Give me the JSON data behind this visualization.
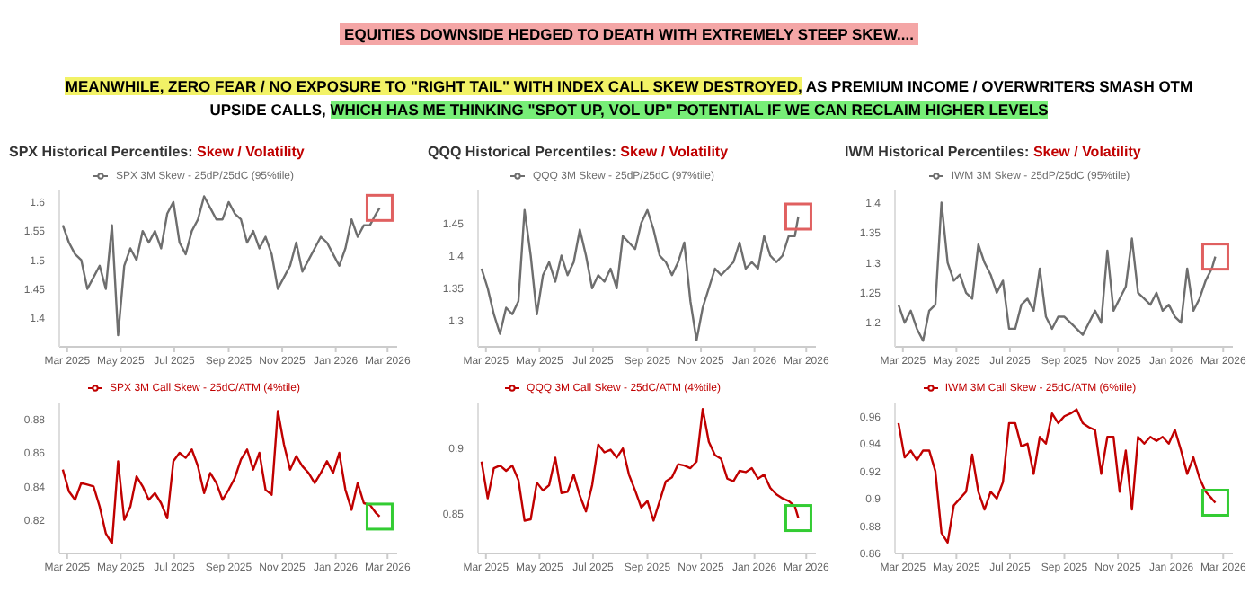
{
  "chart_data": [
    {
      "type": "line",
      "title": "SPX Historical Percentiles:",
      "subtitle": "Skew / Volatility",
      "annotations": [
        "EQUITIES DOWNSIDE HEDGED TO DEATH WITH EXTREMELY STEEP SKEW....",
        "MEANWHILE, ZERO FEAR / NO EXPOSURE TO \"RIGHT TAIL\" WITH INDEX CALL SKEW DESTROYED,",
        " AS PREMIUM INCOME / OVERWRITERS SMASH OTM UPSIDE CALLS, ",
        "WHICH HAS ME THINKING \"SPOT UP, VOL UP\" POTENTIAL IF WE CAN RECLAIM HIGHER LEVELS"
      ],
      "legend": "top",
      "marker": "none",
      "line_style": "solid",
      "x": [
        "2025-02-24",
        "2025-03-03",
        "2025-03-10",
        "2025-03-17",
        "2025-03-24",
        "2025-03-31",
        "2025-04-07",
        "2025-04-14",
        "2025-04-21",
        "2025-04-28",
        "2025-05-05",
        "2025-05-12",
        "2025-05-19",
        "2025-05-26",
        "2025-06-02",
        "2025-06-09",
        "2025-06-16",
        "2025-06-23",
        "2025-06-30",
        "2025-07-07",
        "2025-07-14",
        "2025-07-21",
        "2025-07-28",
        "2025-08-04",
        "2025-08-11",
        "2025-08-18",
        "2025-08-25",
        "2025-09-01",
        "2025-09-08",
        "2025-09-15",
        "2025-09-22",
        "2025-09-29",
        "2025-10-06",
        "2025-10-13",
        "2025-10-20",
        "2025-10-27",
        "2025-11-03",
        "2025-11-10",
        "2025-11-17",
        "2025-11-24",
        "2025-12-01",
        "2025-12-08",
        "2025-12-15",
        "2025-12-22",
        "2025-12-29",
        "2026-01-05",
        "2026-01-12",
        "2026-01-19",
        "2026-01-26",
        "2026-02-02",
        "2026-02-09",
        "2026-02-16",
        "2026-02-20"
      ],
      "xlim": [
        "2025-02-20",
        "2026-03-12"
      ],
      "xticks": [
        {
          "value": "2025-03-01",
          "label": "Mar 2025"
        },
        {
          "value": "2025-05-01",
          "label": "May 2025"
        },
        {
          "value": "2025-07-01",
          "label": "Jul 2025"
        },
        {
          "value": "2025-09-01",
          "label": "Sep 2025"
        },
        {
          "value": "2025-11-01",
          "label": "Nov 2025"
        },
        {
          "value": "2026-01-01",
          "label": "Jan 2026"
        },
        {
          "value": "2026-03-01",
          "label": "Mar 2026"
        }
      ],
      "ylim": [
        1.35,
        1.62
      ],
      "yticks": [
        1.4,
        1.45,
        1.5,
        1.55,
        1.6
      ],
      "series": [
        {
          "name": "SPX 3M Skew - 25dP/25dC (95%tile)",
          "color": "#6e6e6e",
          "values": [
            1.56,
            1.53,
            1.51,
            1.5,
            1.45,
            1.47,
            1.49,
            1.45,
            1.56,
            1.37,
            1.49,
            1.52,
            1.5,
            1.55,
            1.53,
            1.55,
            1.52,
            1.58,
            1.6,
            1.53,
            1.51,
            1.55,
            1.57,
            1.61,
            1.59,
            1.57,
            1.57,
            1.6,
            1.58,
            1.57,
            1.53,
            1.55,
            1.52,
            1.54,
            1.51,
            1.45,
            1.47,
            1.49,
            1.53,
            1.48,
            1.5,
            1.52,
            1.54,
            1.53,
            1.51,
            1.49,
            1.52,
            1.57,
            1.54,
            1.56,
            1.56,
            1.58,
            1.59
          ]
        }
      ]
    },
    {
      "type": "line",
      "title": "QQQ Historical Percentiles:",
      "subtitle": "Skew / Volatility",
      "legend": "top",
      "marker": "none",
      "line_style": "solid",
      "x": [
        "2025-02-24",
        "2025-03-03",
        "2025-03-10",
        "2025-03-17",
        "2025-03-24",
        "2025-03-31",
        "2025-04-07",
        "2025-04-14",
        "2025-04-21",
        "2025-04-28",
        "2025-05-05",
        "2025-05-12",
        "2025-05-19",
        "2025-05-26",
        "2025-06-02",
        "2025-06-09",
        "2025-06-16",
        "2025-06-23",
        "2025-06-30",
        "2025-07-07",
        "2025-07-14",
        "2025-07-21",
        "2025-07-28",
        "2025-08-04",
        "2025-08-11",
        "2025-08-18",
        "2025-08-25",
        "2025-09-01",
        "2025-09-08",
        "2025-09-15",
        "2025-09-22",
        "2025-09-29",
        "2025-10-06",
        "2025-10-13",
        "2025-10-20",
        "2025-10-27",
        "2025-11-03",
        "2025-11-10",
        "2025-11-17",
        "2025-11-24",
        "2025-12-01",
        "2025-12-08",
        "2025-12-15",
        "2025-12-22",
        "2025-12-29",
        "2026-01-05",
        "2026-01-12",
        "2026-01-19",
        "2026-01-26",
        "2026-02-02",
        "2026-02-09",
        "2026-02-16",
        "2026-02-20"
      ],
      "xlim": [
        "2025-02-20",
        "2026-03-12"
      ],
      "xticks": [
        {
          "value": "2025-03-01",
          "label": "Mar 2025"
        },
        {
          "value": "2025-05-01",
          "label": "May 2025"
        },
        {
          "value": "2025-07-01",
          "label": "Jul 2025"
        },
        {
          "value": "2025-09-01",
          "label": "Sep 2025"
        },
        {
          "value": "2025-11-01",
          "label": "Nov 2025"
        },
        {
          "value": "2026-01-01",
          "label": "Jan 2026"
        },
        {
          "value": "2026-03-01",
          "label": "Mar 2026"
        }
      ],
      "ylim": [
        1.26,
        1.5
      ],
      "yticks": [
        1.3,
        1.35,
        1.4,
        1.45
      ],
      "series": [
        {
          "name": "QQQ 3M Skew - 25dP/25dC (97%tile)",
          "color": "#6e6e6e",
          "values": [
            1.38,
            1.35,
            1.31,
            1.28,
            1.32,
            1.31,
            1.33,
            1.47,
            1.4,
            1.31,
            1.37,
            1.39,
            1.36,
            1.4,
            1.37,
            1.39,
            1.44,
            1.4,
            1.35,
            1.37,
            1.36,
            1.38,
            1.35,
            1.43,
            1.42,
            1.41,
            1.45,
            1.47,
            1.44,
            1.4,
            1.39,
            1.37,
            1.39,
            1.42,
            1.33,
            1.27,
            1.32,
            1.35,
            1.38,
            1.37,
            1.38,
            1.39,
            1.42,
            1.38,
            1.39,
            1.38,
            1.43,
            1.4,
            1.39,
            1.4,
            1.43,
            1.43,
            1.46
          ]
        }
      ]
    },
    {
      "type": "line",
      "title": "IWM Historical Percentiles:",
      "subtitle": "Skew / Volatility",
      "legend": "top",
      "marker": "none",
      "line_style": "solid",
      "x": [
        "2025-02-24",
        "2025-03-03",
        "2025-03-10",
        "2025-03-17",
        "2025-03-24",
        "2025-03-31",
        "2025-04-07",
        "2025-04-14",
        "2025-04-21",
        "2025-04-28",
        "2025-05-05",
        "2025-05-12",
        "2025-05-19",
        "2025-05-26",
        "2025-06-02",
        "2025-06-09",
        "2025-06-16",
        "2025-06-23",
        "2025-06-30",
        "2025-07-07",
        "2025-07-14",
        "2025-07-21",
        "2025-07-28",
        "2025-08-04",
        "2025-08-11",
        "2025-08-18",
        "2025-08-25",
        "2025-09-01",
        "2025-09-08",
        "2025-09-15",
        "2025-09-22",
        "2025-09-29",
        "2025-10-06",
        "2025-10-13",
        "2025-10-20",
        "2025-10-27",
        "2025-11-03",
        "2025-11-10",
        "2025-11-17",
        "2025-11-24",
        "2025-12-01",
        "2025-12-08",
        "2025-12-15",
        "2025-12-22",
        "2025-12-29",
        "2026-01-05",
        "2026-01-12",
        "2026-01-19",
        "2026-01-26",
        "2026-02-02",
        "2026-02-09",
        "2026-02-16",
        "2026-02-20"
      ],
      "xlim": [
        "2025-02-20",
        "2026-03-12"
      ],
      "xticks": [
        {
          "value": "2025-03-01",
          "label": "Mar 2025"
        },
        {
          "value": "2025-05-01",
          "label": "May 2025"
        },
        {
          "value": "2025-07-01",
          "label": "Jul 2025"
        },
        {
          "value": "2025-09-01",
          "label": "Sep 2025"
        },
        {
          "value": "2025-11-01",
          "label": "Nov 2025"
        },
        {
          "value": "2026-01-01",
          "label": "Jan 2026"
        },
        {
          "value": "2026-03-01",
          "label": "Mar 2026"
        }
      ],
      "ylim": [
        1.16,
        1.42
      ],
      "yticks": [
        1.2,
        1.25,
        1.3,
        1.35,
        1.4
      ],
      "series": [
        {
          "name": "IWM 3M Skew - 25dP/25dC (95%tile)",
          "color": "#6e6e6e",
          "values": [
            1.23,
            1.2,
            1.22,
            1.19,
            1.17,
            1.22,
            1.23,
            1.4,
            1.3,
            1.27,
            1.28,
            1.25,
            1.24,
            1.33,
            1.3,
            1.28,
            1.25,
            1.27,
            1.19,
            1.19,
            1.23,
            1.24,
            1.22,
            1.29,
            1.21,
            1.19,
            1.21,
            1.21,
            1.2,
            1.19,
            1.18,
            1.2,
            1.22,
            1.2,
            1.32,
            1.22,
            1.24,
            1.26,
            1.34,
            1.25,
            1.24,
            1.23,
            1.25,
            1.22,
            1.23,
            1.21,
            1.2,
            1.29,
            1.22,
            1.24,
            1.27,
            1.29,
            1.31
          ]
        }
      ]
    },
    {
      "type": "line",
      "legend": "top",
      "marker": "none",
      "line_style": "solid",
      "x": [
        "2025-02-24",
        "2025-03-03",
        "2025-03-10",
        "2025-03-17",
        "2025-03-24",
        "2025-03-31",
        "2025-04-07",
        "2025-04-14",
        "2025-04-21",
        "2025-04-28",
        "2025-05-05",
        "2025-05-12",
        "2025-05-19",
        "2025-05-26",
        "2025-06-02",
        "2025-06-09",
        "2025-06-16",
        "2025-06-23",
        "2025-06-30",
        "2025-07-07",
        "2025-07-14",
        "2025-07-21",
        "2025-07-28",
        "2025-08-04",
        "2025-08-11",
        "2025-08-18",
        "2025-08-25",
        "2025-09-01",
        "2025-09-08",
        "2025-09-15",
        "2025-09-22",
        "2025-09-29",
        "2025-10-06",
        "2025-10-13",
        "2025-10-20",
        "2025-10-27",
        "2025-11-03",
        "2025-11-10",
        "2025-11-17",
        "2025-11-24",
        "2025-12-01",
        "2025-12-08",
        "2025-12-15",
        "2025-12-22",
        "2025-12-29",
        "2026-01-05",
        "2026-01-12",
        "2026-01-19",
        "2026-01-26",
        "2026-02-02",
        "2026-02-09",
        "2026-02-16",
        "2026-02-20"
      ],
      "xlim": [
        "2025-02-20",
        "2026-03-12"
      ],
      "xticks": [
        {
          "value": "2025-03-01",
          "label": "Mar 2025"
        },
        {
          "value": "2025-05-01",
          "label": "May 2025"
        },
        {
          "value": "2025-07-01",
          "label": "Jul 2025"
        },
        {
          "value": "2025-09-01",
          "label": "Sep 2025"
        },
        {
          "value": "2025-11-01",
          "label": "Nov 2025"
        },
        {
          "value": "2026-01-01",
          "label": "Jan 2026"
        },
        {
          "value": "2026-03-01",
          "label": "Mar 2026"
        }
      ],
      "ylim": [
        0.8,
        0.89
      ],
      "yticks": [
        0.82,
        0.84,
        0.86,
        0.88
      ],
      "series": [
        {
          "name": "SPX 3M Call Skew - 25dC/ATM (4%tile)",
          "color": "#c00000",
          "values": [
            0.85,
            0.837,
            0.832,
            0.842,
            0.841,
            0.84,
            0.828,
            0.812,
            0.806,
            0.855,
            0.82,
            0.828,
            0.846,
            0.84,
            0.832,
            0.836,
            0.83,
            0.821,
            0.855,
            0.86,
            0.857,
            0.862,
            0.852,
            0.836,
            0.848,
            0.842,
            0.832,
            0.838,
            0.845,
            0.856,
            0.862,
            0.85,
            0.86,
            0.838,
            0.835,
            0.885,
            0.865,
            0.85,
            0.858,
            0.852,
            0.848,
            0.842,
            0.848,
            0.855,
            0.848,
            0.86,
            0.838,
            0.826,
            0.842,
            0.83,
            0.829,
            0.824,
            0.822
          ]
        }
      ]
    },
    {
      "type": "line",
      "legend": "top",
      "marker": "none",
      "line_style": "solid",
      "x": [
        "2025-02-24",
        "2025-03-03",
        "2025-03-10",
        "2025-03-17",
        "2025-03-24",
        "2025-03-31",
        "2025-04-07",
        "2025-04-14",
        "2025-04-21",
        "2025-04-28",
        "2025-05-05",
        "2025-05-12",
        "2025-05-19",
        "2025-05-26",
        "2025-06-02",
        "2025-06-09",
        "2025-06-16",
        "2025-06-23",
        "2025-06-30",
        "2025-07-07",
        "2025-07-14",
        "2025-07-21",
        "2025-07-28",
        "2025-08-04",
        "2025-08-11",
        "2025-08-18",
        "2025-08-25",
        "2025-09-01",
        "2025-09-08",
        "2025-09-15",
        "2025-09-22",
        "2025-09-29",
        "2025-10-06",
        "2025-10-13",
        "2025-10-20",
        "2025-10-27",
        "2025-11-03",
        "2025-11-10",
        "2025-11-17",
        "2025-11-24",
        "2025-12-01",
        "2025-12-08",
        "2025-12-15",
        "2025-12-22",
        "2025-12-29",
        "2026-01-05",
        "2026-01-12",
        "2026-01-19",
        "2026-01-26",
        "2026-02-02",
        "2026-02-09",
        "2026-02-16",
        "2026-02-20"
      ],
      "xlim": [
        "2025-02-20",
        "2026-03-12"
      ],
      "xticks": [
        {
          "value": "2025-03-01",
          "label": "Mar 2025"
        },
        {
          "value": "2025-05-01",
          "label": "May 2025"
        },
        {
          "value": "2025-07-01",
          "label": "Jul 2025"
        },
        {
          "value": "2025-09-01",
          "label": "Sep 2025"
        },
        {
          "value": "2025-11-01",
          "label": "Nov 2025"
        },
        {
          "value": "2026-01-01",
          "label": "Jan 2026"
        },
        {
          "value": "2026-03-01",
          "label": "Mar 2026"
        }
      ],
      "ylim": [
        0.82,
        0.935
      ],
      "yticks": [
        0.85,
        0.9
      ],
      "series": [
        {
          "name": "QQQ 3M Call Skew - 25dC/ATM (4%tile)",
          "color": "#c00000",
          "values": [
            0.89,
            0.862,
            0.885,
            0.887,
            0.883,
            0.887,
            0.876,
            0.845,
            0.846,
            0.874,
            0.868,
            0.872,
            0.893,
            0.866,
            0.867,
            0.88,
            0.864,
            0.852,
            0.872,
            0.903,
            0.897,
            0.899,
            0.893,
            0.9,
            0.88,
            0.868,
            0.855,
            0.86,
            0.845,
            0.86,
            0.875,
            0.878,
            0.888,
            0.887,
            0.885,
            0.89,
            0.93,
            0.905,
            0.895,
            0.892,
            0.877,
            0.875,
            0.883,
            0.882,
            0.885,
            0.877,
            0.88,
            0.87,
            0.865,
            0.862,
            0.86,
            0.856,
            0.847
          ]
        }
      ]
    },
    {
      "type": "line",
      "legend": "top",
      "marker": "none",
      "line_style": "solid",
      "x": [
        "2025-02-24",
        "2025-03-03",
        "2025-03-10",
        "2025-03-17",
        "2025-03-24",
        "2025-03-31",
        "2025-04-07",
        "2025-04-14",
        "2025-04-21",
        "2025-04-28",
        "2025-05-05",
        "2025-05-12",
        "2025-05-19",
        "2025-05-26",
        "2025-06-02",
        "2025-06-09",
        "2025-06-16",
        "2025-06-23",
        "2025-06-30",
        "2025-07-07",
        "2025-07-14",
        "2025-07-21",
        "2025-07-28",
        "2025-08-04",
        "2025-08-11",
        "2025-08-18",
        "2025-08-25",
        "2025-09-01",
        "2025-09-08",
        "2025-09-15",
        "2025-09-22",
        "2025-09-29",
        "2025-10-06",
        "2025-10-13",
        "2025-10-20",
        "2025-10-27",
        "2025-11-03",
        "2025-11-10",
        "2025-11-17",
        "2025-11-24",
        "2025-12-01",
        "2025-12-08",
        "2025-12-15",
        "2025-12-22",
        "2025-12-29",
        "2026-01-05",
        "2026-01-12",
        "2026-01-19",
        "2026-01-26",
        "2026-02-02",
        "2026-02-09",
        "2026-02-16",
        "2026-02-20"
      ],
      "xlim": [
        "2025-02-20",
        "2026-03-12"
      ],
      "xticks": [
        {
          "value": "2025-03-01",
          "label": "Mar 2025"
        },
        {
          "value": "2025-05-01",
          "label": "May 2025"
        },
        {
          "value": "2025-07-01",
          "label": "Jul 2025"
        },
        {
          "value": "2025-09-01",
          "label": "Sep 2025"
        },
        {
          "value": "2025-11-01",
          "label": "Nov 2025"
        },
        {
          "value": "2026-01-01",
          "label": "Jan 2026"
        },
        {
          "value": "2026-03-01",
          "label": "Mar 2026"
        }
      ],
      "ylim": [
        0.86,
        0.97
      ],
      "yticks": [
        0.86,
        0.88,
        0.9,
        0.92,
        0.94,
        0.96
      ],
      "series": [
        {
          "name": "IWM 3M Call Skew - 25dC/ATM (6%tile)",
          "color": "#c00000",
          "values": [
            0.955,
            0.93,
            0.935,
            0.928,
            0.935,
            0.935,
            0.92,
            0.875,
            0.868,
            0.895,
            0.9,
            0.905,
            0.932,
            0.905,
            0.892,
            0.905,
            0.9,
            0.912,
            0.955,
            0.955,
            0.938,
            0.94,
            0.918,
            0.945,
            0.94,
            0.962,
            0.955,
            0.96,
            0.962,
            0.965,
            0.955,
            0.952,
            0.95,
            0.918,
            0.945,
            0.945,
            0.905,
            0.935,
            0.892,
            0.945,
            0.94,
            0.945,
            0.942,
            0.945,
            0.94,
            0.95,
            0.935,
            0.918,
            0.93,
            0.915,
            0.905,
            0.9,
            0.897
          ]
        }
      ]
    }
  ]
}
